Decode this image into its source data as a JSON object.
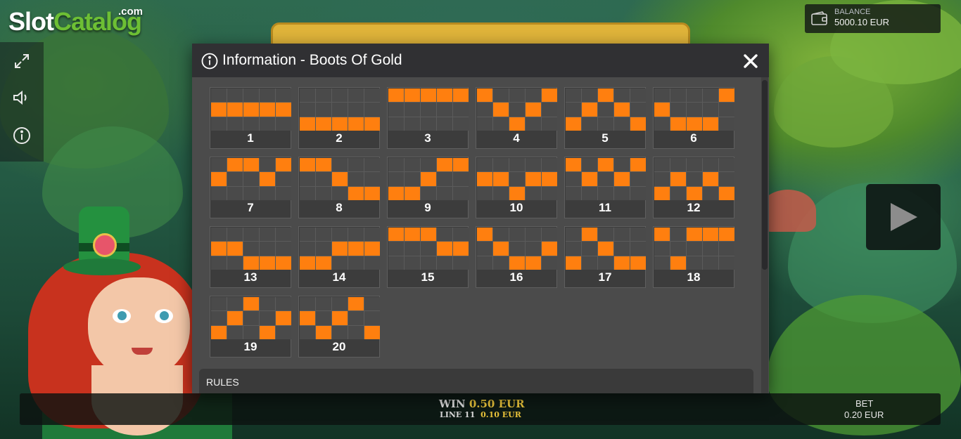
{
  "branding": {
    "logo_slot": "Slot",
    "logo_catalog": "Catalog",
    "logo_domain": ".com"
  },
  "toolbar": {
    "icons": [
      "fullscreen-icon",
      "sound-icon",
      "info-icon"
    ]
  },
  "balance": {
    "label": "BALANCE",
    "value": "5000.10 EUR"
  },
  "modal": {
    "title": "Information - Boots Of Gold",
    "close_icon": "close-icon",
    "rules_label": "RULES"
  },
  "paylines": [
    {
      "number": "1",
      "rows": [
        1,
        1,
        1,
        1,
        1
      ]
    },
    {
      "number": "2",
      "rows": [
        2,
        2,
        2,
        2,
        2
      ]
    },
    {
      "number": "3",
      "rows": [
        0,
        0,
        0,
        0,
        0
      ]
    },
    {
      "number": "4",
      "rows": [
        0,
        1,
        2,
        1,
        0
      ]
    },
    {
      "number": "5",
      "rows": [
        2,
        1,
        0,
        1,
        2
      ]
    },
    {
      "number": "6",
      "rows": [
        1,
        2,
        2,
        2,
        0
      ]
    },
    {
      "number": "7",
      "rows": [
        1,
        0,
        0,
        1,
        0
      ]
    },
    {
      "number": "8",
      "rows": [
        0,
        0,
        1,
        2,
        2
      ]
    },
    {
      "number": "9",
      "rows": [
        2,
        2,
        1,
        0,
        0
      ]
    },
    {
      "number": "10",
      "rows": [
        1,
        1,
        2,
        1,
        1
      ]
    },
    {
      "number": "11",
      "rows": [
        0,
        1,
        0,
        1,
        0
      ]
    },
    {
      "number": "12",
      "rows": [
        2,
        1,
        2,
        1,
        2
      ]
    },
    {
      "number": "13",
      "rows": [
        1,
        1,
        2,
        2,
        2
      ]
    },
    {
      "number": "14",
      "rows": [
        2,
        2,
        1,
        1,
        1
      ]
    },
    {
      "number": "15",
      "rows": [
        0,
        0,
        0,
        1,
        1
      ]
    },
    {
      "number": "16",
      "rows": [
        0,
        1,
        2,
        2,
        1
      ]
    },
    {
      "number": "17",
      "rows": [
        2,
        0,
        1,
        2,
        2
      ]
    },
    {
      "number": "18",
      "rows": [
        0,
        2,
        0,
        0,
        0
      ]
    },
    {
      "number": "19",
      "rows": [
        2,
        1,
        0,
        2,
        1
      ]
    },
    {
      "number": "20",
      "rows": [
        1,
        2,
        1,
        0,
        2
      ]
    }
  ],
  "bottom_bar": {
    "win_label": "WIN",
    "win_value": "0.50 EUR",
    "line_label": "LINE 11",
    "line_value": "0.10 EUR",
    "bet_label": "BET",
    "bet_value": "0.20 EUR"
  },
  "colors": {
    "payline_active": "#ff7f0f",
    "win_value": "#e8c23a"
  }
}
